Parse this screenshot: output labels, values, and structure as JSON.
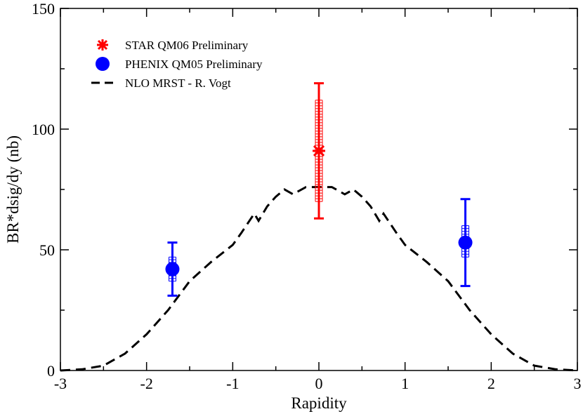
{
  "chart_data": {
    "type": "scatter",
    "title": "",
    "xlabel": "Rapidity",
    "ylabel": "BR*dsig/dy (nb)",
    "xlim": [
      -3,
      3
    ],
    "ylim": [
      0,
      150
    ],
    "grid": false,
    "legend_position": "top-left",
    "x_ticks": [
      -3,
      -2,
      -1,
      0,
      1,
      2,
      3
    ],
    "y_ticks": [
      0,
      50,
      100,
      150
    ],
    "x_tick_labels": [
      "-3",
      "-2",
      "-1",
      "0",
      "1",
      "2",
      "3"
    ],
    "y_tick_labels": [
      "0",
      "50",
      "100",
      "150"
    ],
    "series": [
      {
        "name": "STAR QM06 Preliminary",
        "marker": "star",
        "color": "#ff0000",
        "points": [
          {
            "x": 0,
            "y": 91,
            "err_low": 63,
            "err_high": 119,
            "sys_low": 70,
            "sys_high": 112
          }
        ]
      },
      {
        "name": "PHENIX QM05 Preliminary",
        "marker": "circle",
        "color": "#0000ff",
        "points": [
          {
            "x": -1.7,
            "y": 42,
            "err_low": 31,
            "err_high": 53,
            "sys_low": 37,
            "sys_high": 47
          },
          {
            "x": 1.7,
            "y": 53,
            "err_low": 35,
            "err_high": 71,
            "sys_low": 47,
            "sys_high": 60
          }
        ]
      },
      {
        "name": "NLO MRST - R. Vogt",
        "marker": "dashed-line",
        "color": "#000000",
        "x": [
          -3,
          -2.75,
          -2.5,
          -2.25,
          -2,
          -1.75,
          -1.5,
          -1.25,
          -1.0,
          -0.9,
          -0.75,
          -0.7,
          -0.6,
          -0.5,
          -0.4,
          -0.3,
          -0.25,
          -0.15,
          0,
          0.15,
          0.25,
          0.3,
          0.4,
          0.5,
          0.6,
          0.7,
          0.75,
          0.9,
          1.0,
          1.25,
          1.5,
          1.75,
          2,
          2.25,
          2.5,
          2.75,
          3
        ],
        "y": [
          0,
          0.5,
          2,
          7,
          15,
          25,
          37,
          45,
          52,
          57,
          65,
          62,
          68,
          72,
          75,
          73,
          74,
          76,
          76,
          76,
          74,
          73,
          75,
          72,
          68,
          62,
          65,
          57,
          52,
          45,
          37,
          25,
          15,
          7,
          2,
          0.5,
          0
        ]
      }
    ]
  }
}
